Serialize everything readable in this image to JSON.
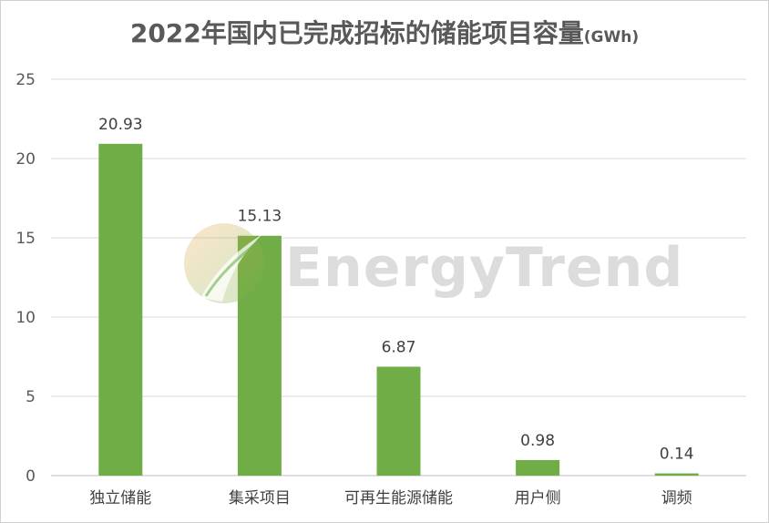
{
  "chart_data": {
    "type": "bar",
    "title": "2022年国内已完成招标的储能项目容量",
    "title_unit": "(GWh)",
    "categories": [
      "独立储能",
      "集采项目",
      "可再生能源储能",
      "用户侧",
      "调频"
    ],
    "values": [
      20.93,
      15.13,
      6.87,
      0.98,
      0.14
    ],
    "data_labels": [
      "20.93",
      "15.13",
      "6.87",
      "0.98",
      "0.14"
    ],
    "ylim": [
      0,
      25
    ],
    "yticks": [
      0,
      5,
      10,
      15,
      20,
      25
    ],
    "xlabel": "",
    "ylabel": "",
    "grid": true,
    "legend": "none",
    "bar_color": "#70ad47"
  },
  "watermark": {
    "text": "EnergyTrend",
    "logo_colors": [
      "#f3a947",
      "#6ab04c"
    ]
  }
}
